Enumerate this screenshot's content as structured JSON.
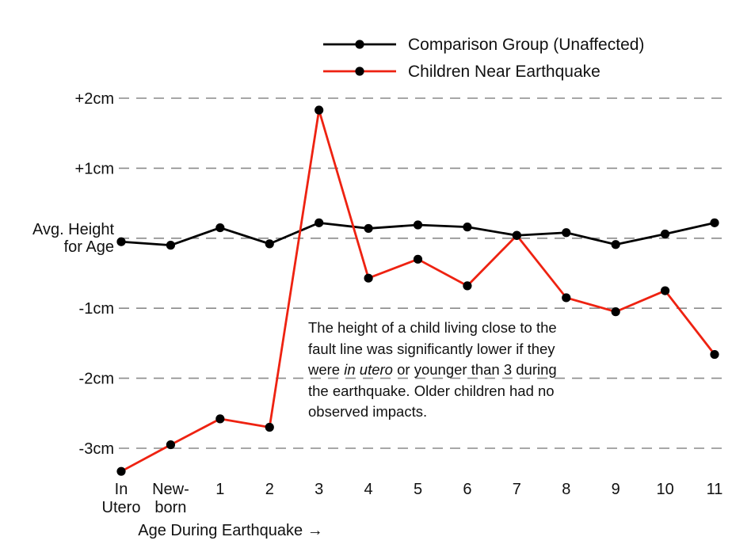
{
  "chart_data": {
    "type": "line",
    "xlabel": "Age During Earthquake",
    "xlabel_arrow": "→",
    "categories": [
      [
        "In",
        "Utero"
      ],
      [
        "New-",
        "born"
      ],
      [
        "1"
      ],
      [
        "2"
      ],
      [
        "3"
      ],
      [
        "4"
      ],
      [
        "5"
      ],
      [
        "6"
      ],
      [
        "7"
      ],
      [
        "8"
      ],
      [
        "9"
      ],
      [
        "10"
      ],
      [
        "11"
      ]
    ],
    "yticks": [
      {
        "value": 2,
        "label": [
          "+2cm"
        ]
      },
      {
        "value": 1,
        "label": [
          "+1cm"
        ]
      },
      {
        "value": 0,
        "label": [
          "Avg. Height",
          "for Age"
        ]
      },
      {
        "value": -1,
        "label": [
          "-1cm"
        ]
      },
      {
        "value": -2,
        "label": [
          "-2cm"
        ]
      },
      {
        "value": -3,
        "label": [
          "-3cm"
        ]
      }
    ],
    "ylim": [
      -3.35,
      2.35
    ],
    "grid": true,
    "legend_position": "top-right",
    "series": [
      {
        "name": "Comparison Group (Unaffected)",
        "color": "#000000",
        "values": [
          -0.05,
          -0.1,
          0.15,
          -0.08,
          0.22,
          0.14,
          0.19,
          0.16,
          0.04,
          0.08,
          -0.09,
          0.06,
          0.22
        ]
      },
      {
        "name": "Children Near Earthquake",
        "color": "#ee2211",
        "values": [
          -3.33,
          -2.95,
          -2.58,
          -2.7,
          1.83,
          -0.57,
          -0.3,
          -0.68,
          0.04,
          -0.85,
          -1.05,
          -0.75,
          -1.66
        ]
      }
    ]
  },
  "annotation": {
    "part1": "The height of a child living close to the fault line was significantly lower if they were ",
    "emphasis": "in utero",
    "part2": " or younger than 3 during the earthquake. Older children had no observed impacts."
  }
}
